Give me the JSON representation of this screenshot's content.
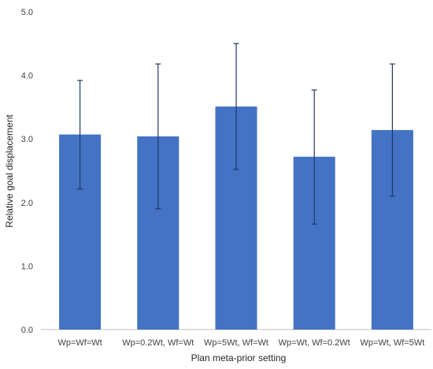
{
  "chart_data": {
    "type": "bar",
    "title": "",
    "xlabel": "Plan meta-prior setting",
    "ylabel": "Relative goal displacement",
    "categories": [
      "Wp=Wf=Wt",
      "Wp=0.2Wt, Wf=Wt",
      "Wp=5Wt, Wf=Wt",
      "Wp=Wt, Wf=0.2Wt",
      "Wp=Wt, Wf=5Wt"
    ],
    "values": [
      3.07,
      3.04,
      3.51,
      2.72,
      3.14
    ],
    "error_low": [
      2.21,
      1.9,
      2.52,
      1.66,
      2.1
    ],
    "error_high": [
      3.92,
      4.18,
      4.5,
      3.77,
      4.18
    ],
    "yticks": [
      "0.0",
      "1.0",
      "2.0",
      "3.0",
      "4.0",
      "5.0"
    ],
    "ylim": [
      0,
      5
    ],
    "grid": false,
    "legend": "none",
    "bar_color": "#4472C4",
    "error_color": "#1F3864"
  }
}
